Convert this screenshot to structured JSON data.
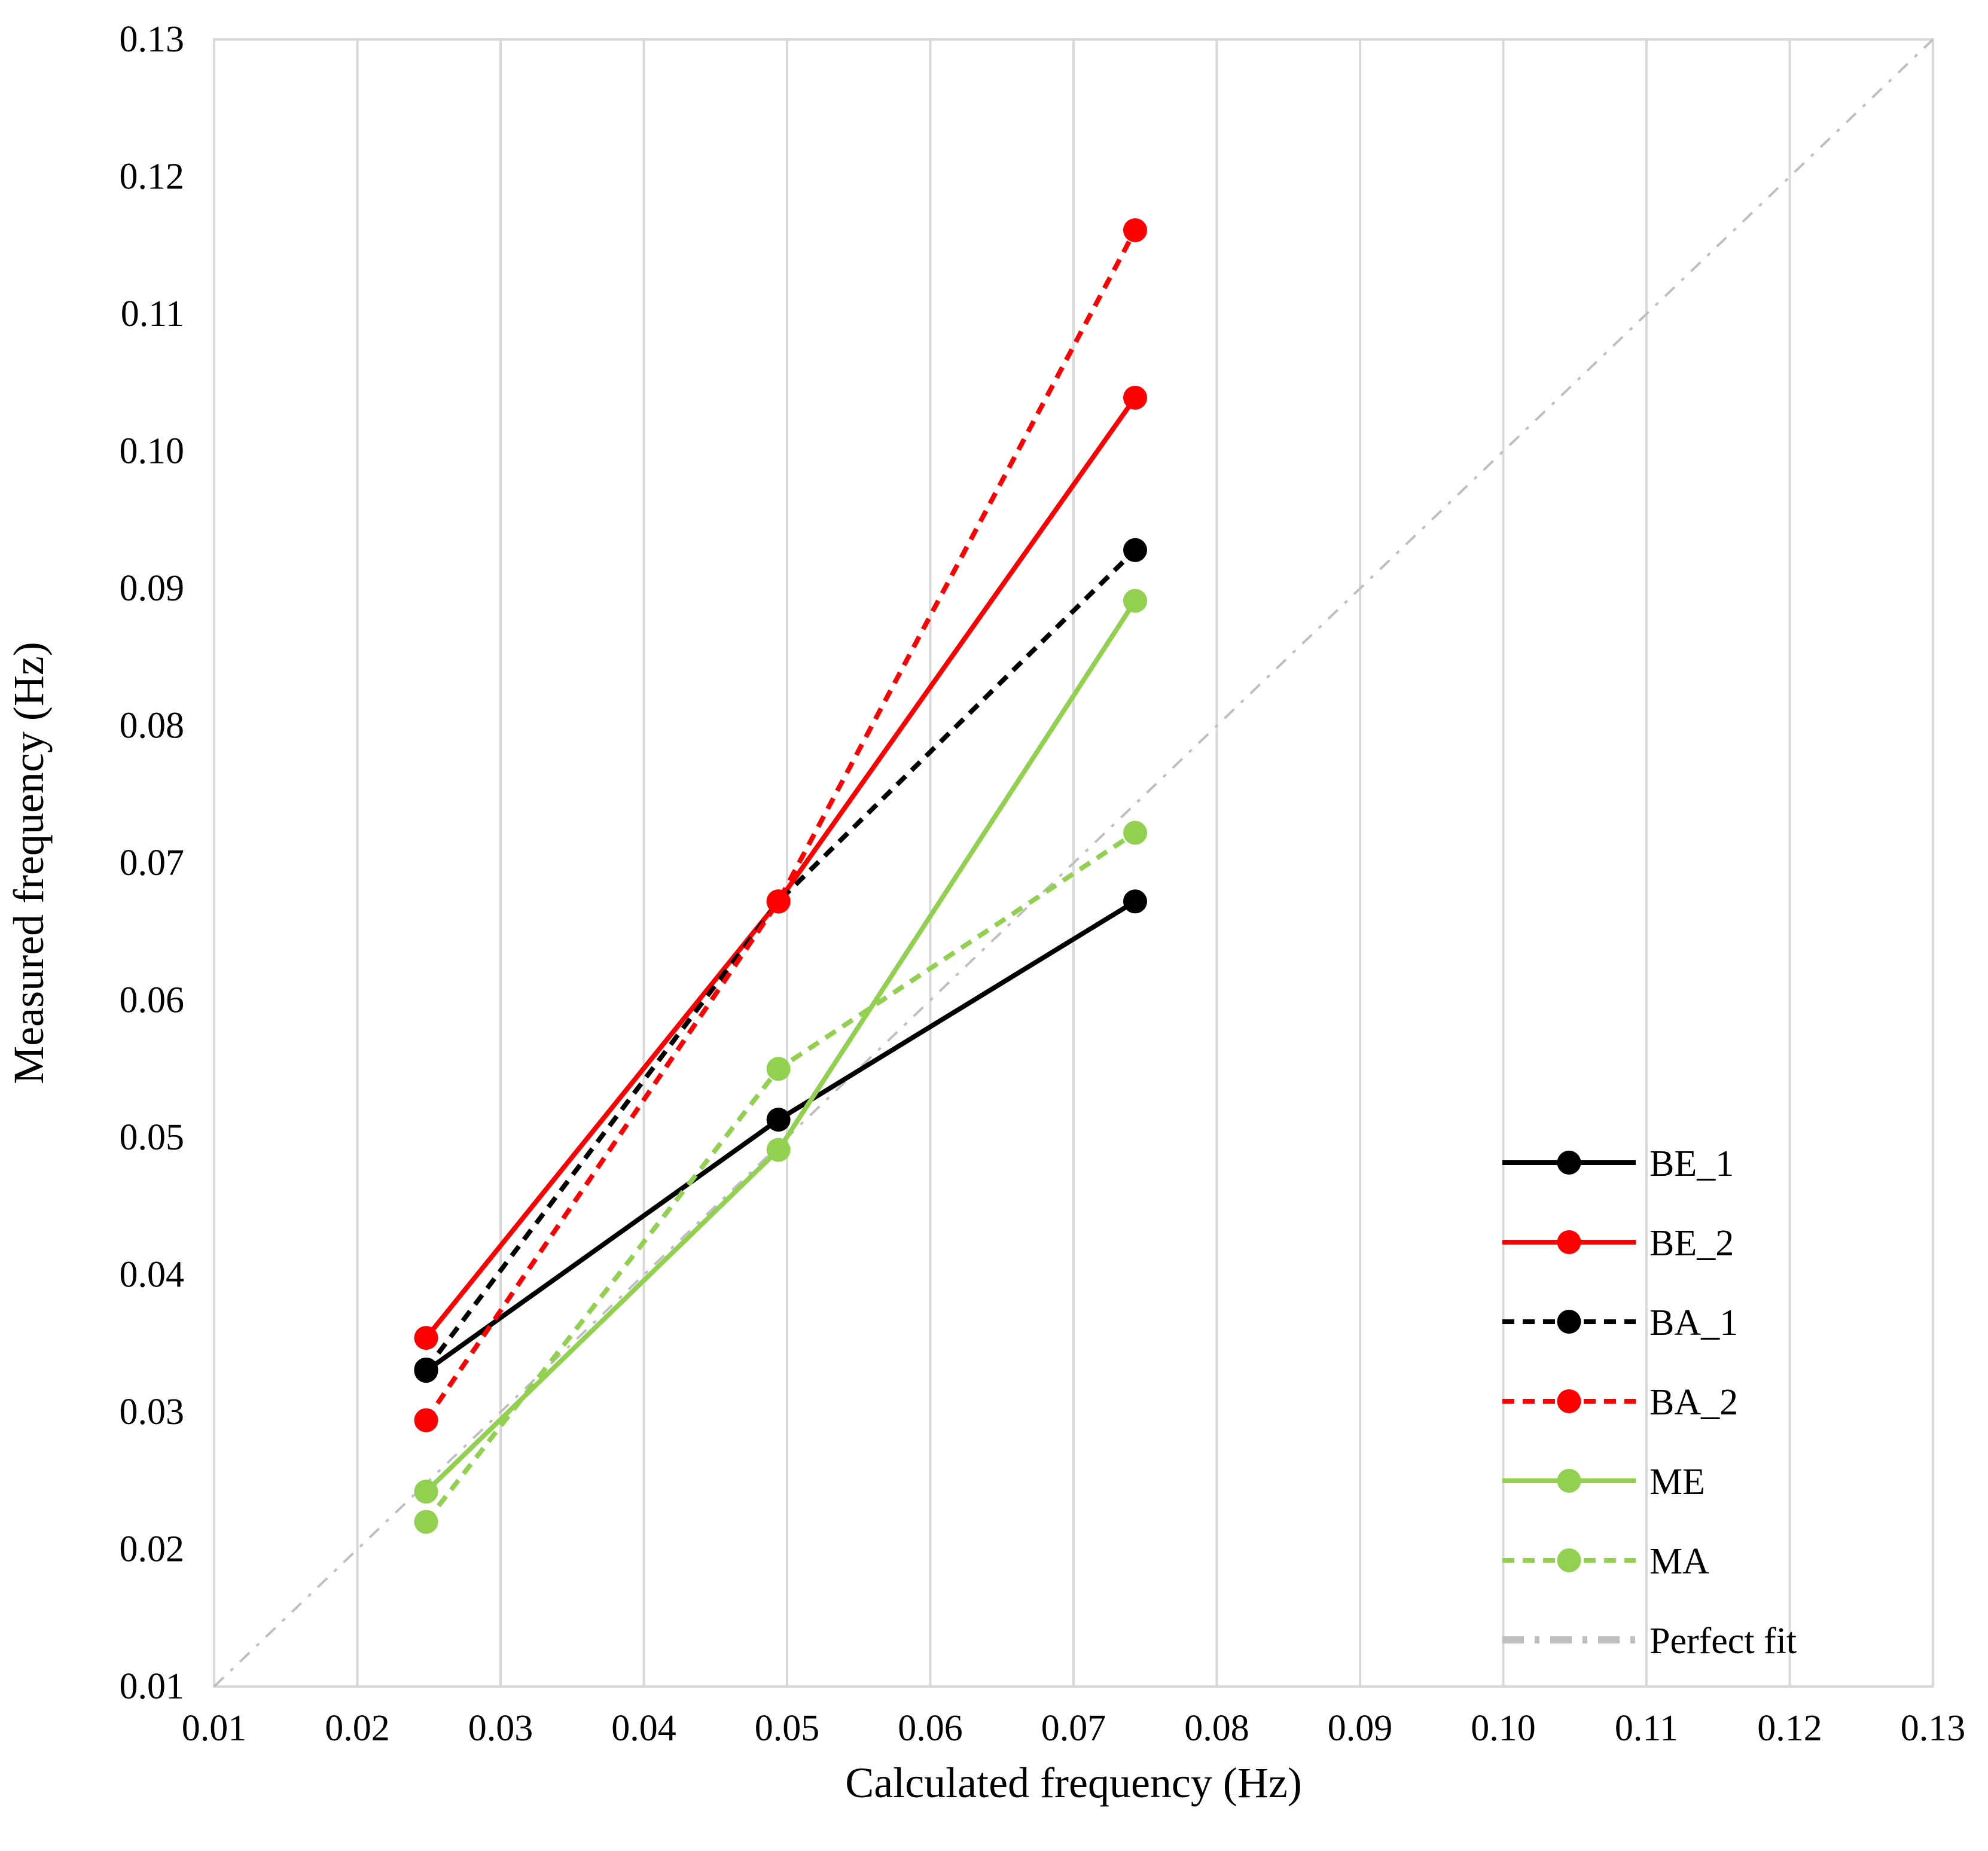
{
  "chart_data": {
    "type": "line",
    "title": "",
    "xlabel": "Calculated frequency (Hz)",
    "ylabel": "Measured frequency (Hz)",
    "xlim": [
      0.01,
      0.13
    ],
    "ylim": [
      0.01,
      0.13
    ],
    "xticks": [
      "0.01",
      "0.02",
      "0.03",
      "0.04",
      "0.05",
      "0.06",
      "0.07",
      "0.08",
      "0.09",
      "0.10",
      "0.11",
      "0.12",
      "0.13"
    ],
    "yticks": [
      "0.01",
      "0.02",
      "0.03",
      "0.04",
      "0.05",
      "0.06",
      "0.07",
      "0.08",
      "0.09",
      "0.10",
      "0.11",
      "0.12",
      "0.13"
    ],
    "grid": true,
    "legend_position": "bottom-right",
    "x": [
      0.0248,
      0.0494,
      0.0743
    ],
    "series": [
      {
        "name": "BE_1",
        "color": "#000000",
        "dashed": false,
        "marker": true,
        "values": [
          0.033,
          0.0513,
          0.0672
        ]
      },
      {
        "name": "BE_2",
        "color": "#ff0000",
        "dashed": false,
        "marker": true,
        "values": [
          0.0354,
          0.0672,
          0.1039
        ]
      },
      {
        "name": "BA_1",
        "color": "#000000",
        "dashed": true,
        "marker": true,
        "values": [
          0.0331,
          0.0672,
          0.0928
        ]
      },
      {
        "name": "BA_2",
        "color": "#ff0000",
        "dashed": true,
        "marker": true,
        "values": [
          0.0294,
          0.0672,
          0.1161
        ]
      },
      {
        "name": "ME",
        "color": "#92d050",
        "dashed": false,
        "marker": true,
        "values": [
          0.0242,
          0.0491,
          0.0891
        ]
      },
      {
        "name": "MA",
        "color": "#92d050",
        "dashed": true,
        "marker": true,
        "values": [
          0.022,
          0.055,
          0.0722
        ]
      }
    ],
    "reference_line": {
      "name": "Perfect fit",
      "color": "#bfbfbf",
      "style": "dash-dot",
      "x": [
        0.01,
        0.13
      ],
      "y": [
        0.01,
        0.13
      ]
    }
  }
}
